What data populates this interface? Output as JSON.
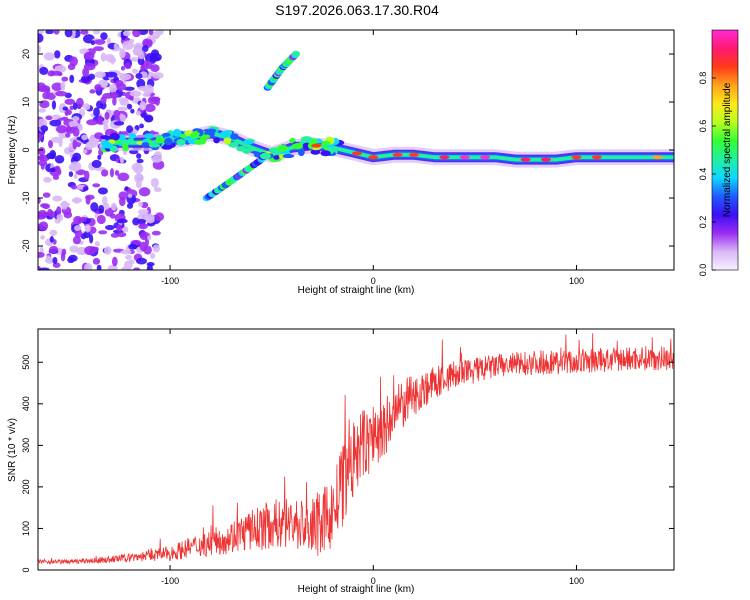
{
  "title": "S197.2026.063.17.30.R04",
  "chart_data": [
    {
      "type": "heatmap",
      "name": "spectrogram",
      "xlabel": "Height of straight line (km)",
      "ylabel": "Frequency (Hz)",
      "xlim": [
        -165,
        148
      ],
      "ylim": [
        -25,
        25
      ],
      "xticks": [
        -100,
        0,
        100
      ],
      "yticks": [
        -20,
        -10,
        0,
        10,
        20
      ],
      "colorbar": {
        "label": "Normalized spectral amplitude",
        "ticks": [
          0.0,
          0.2,
          0.4,
          0.6,
          0.8
        ],
        "range": [
          0,
          1
        ],
        "colors": [
          "#f7f0ff",
          "#d9b8f7",
          "#9a2cf2",
          "#3a10f5",
          "#1f5cff",
          "#0fd8ff",
          "#22f0a0",
          "#33ff33",
          "#b8ff20",
          "#ffe81a",
          "#ffa41a",
          "#ff3a1a",
          "#ff1a70",
          "#ff2ad6"
        ]
      },
      "ridge": {
        "x": [
          -130,
          -120,
          -110,
          -100,
          -90,
          -80,
          -70,
          -60,
          -50,
          -40,
          -30,
          -20,
          -10,
          0,
          10,
          20,
          30,
          40,
          50,
          60,
          70,
          80,
          90,
          100,
          110,
          120,
          130,
          140,
          148
        ],
        "freq": [
          1.5,
          1.5,
          1.5,
          2.0,
          2.5,
          3.5,
          2.5,
          0.5,
          -1.0,
          0.5,
          1.0,
          0.5,
          -0.5,
          -1.5,
          -1.0,
          -1.0,
          -1.5,
          -1.5,
          -1.5,
          -1.5,
          -2.0,
          -2.0,
          -2.0,
          -1.5,
          -1.5,
          -1.5,
          -1.5,
          -1.5,
          -1.5
        ]
      },
      "branches": [
        {
          "x": [
            -82,
            -75,
            -65,
            -55
          ],
          "freq": [
            -10,
            -8,
            -5,
            -2
          ]
        },
        {
          "x": [
            -52,
            -45,
            -38
          ],
          "freq": [
            13,
            17,
            20
          ]
        }
      ]
    },
    {
      "type": "line",
      "name": "snr",
      "xlabel": "Height of straight line (km)",
      "ylabel": "SNR (10 * v/v)",
      "xlim": [
        -165,
        148
      ],
      "ylim": [
        0,
        580
      ],
      "xticks": [
        -100,
        0,
        100
      ],
      "yticks": [
        0,
        100,
        200,
        300,
        400,
        500
      ],
      "series": [
        {
          "name": "SNR",
          "color": "#ee3333",
          "x": [
            -165,
            -150,
            -140,
            -130,
            -120,
            -110,
            -100,
            -90,
            -80,
            -70,
            -60,
            -50,
            -40,
            -30,
            -25,
            -20,
            -15,
            -10,
            -5,
            0,
            5,
            10,
            15,
            20,
            30,
            40,
            50,
            60,
            70,
            80,
            90,
            100,
            110,
            120,
            130,
            140,
            148
          ],
          "values": [
            20,
            20,
            22,
            25,
            30,
            35,
            40,
            55,
            65,
            80,
            95,
            110,
            115,
            100,
            110,
            140,
            200,
            260,
            300,
            320,
            330,
            370,
            400,
            420,
            450,
            470,
            480,
            490,
            495,
            500,
            500,
            500,
            505,
            505,
            510,
            510,
            510
          ],
          "noise": [
            5,
            5,
            6,
            8,
            10,
            14,
            18,
            25,
            32,
            40,
            50,
            60,
            65,
            70,
            80,
            90,
            100,
            100,
            90,
            85,
            80,
            70,
            60,
            50,
            40,
            35,
            32,
            30,
            30,
            30,
            30,
            30,
            30,
            30,
            30,
            30,
            30
          ]
        }
      ]
    }
  ]
}
